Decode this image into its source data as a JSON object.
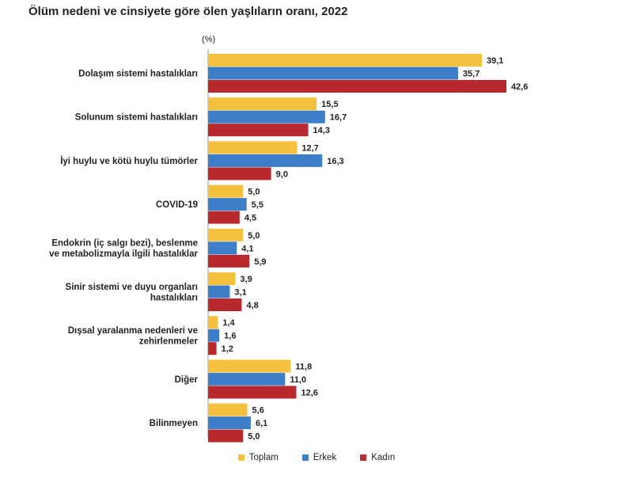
{
  "chart_data": {
    "type": "bar",
    "orientation": "horizontal",
    "title": "Ölüm nedeni ve cinsiyete göre ölen yaşlıların oranı, 2022",
    "unit_label": "(%)",
    "xlim": [
      0,
      45
    ],
    "grid": false,
    "legend_position": "bottom",
    "categories": [
      [
        "Dolaşım sistemi hastalıkları"
      ],
      [
        "Solunum sistemi hastalıkları"
      ],
      [
        "İyi huylu ve kötü huylu tümörler"
      ],
      [
        "COVID-19"
      ],
      [
        "Endokrin (iç salgı bezi), beslenme",
        "ve metabolizmayla ilgili hastalıklar"
      ],
      [
        "Sinir sistemi ve duyu organları",
        "hastalıkları"
      ],
      [
        "Dışsal yaralanma nedenleri ve",
        "zehirlenmeler"
      ],
      [
        "Diğer"
      ],
      [
        "Bilinmeyen"
      ]
    ],
    "series": [
      {
        "name": "Toplam",
        "color": "#f4c13f",
        "values": [
          39.1,
          15.5,
          12.7,
          5.0,
          5.0,
          3.9,
          1.4,
          11.8,
          5.6
        ],
        "labels": [
          "39,1",
          "15,5",
          "12,7",
          "5,0",
          "5,0",
          "3,9",
          "1,4",
          "11,8",
          "5,6"
        ]
      },
      {
        "name": "Erkek",
        "color": "#3d7ec9",
        "values": [
          35.7,
          16.7,
          16.3,
          5.5,
          4.1,
          3.1,
          1.6,
          11.0,
          6.1
        ],
        "labels": [
          "35,7",
          "16,7",
          "16,3",
          "5,5",
          "4,1",
          "3,1",
          "1,6",
          "11,0",
          "6,1"
        ]
      },
      {
        "name": "Kadın",
        "color": "#b8282c",
        "values": [
          42.6,
          14.3,
          9.0,
          4.5,
          5.9,
          4.8,
          1.2,
          12.6,
          5.0
        ],
        "labels": [
          "42,6",
          "14,3",
          "9,0",
          "4,5",
          "5,9",
          "4,8",
          "1,2",
          "12,6",
          "5,0"
        ]
      }
    ]
  }
}
